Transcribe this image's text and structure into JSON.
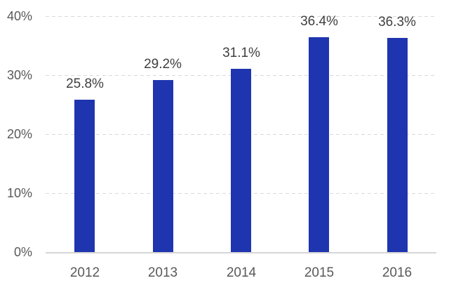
{
  "chart_data": {
    "type": "bar",
    "title": "",
    "xlabel": "",
    "ylabel": "",
    "categories": [
      "2012",
      "2013",
      "2014",
      "2015",
      "2016"
    ],
    "values": [
      25.8,
      29.2,
      31.1,
      36.4,
      36.3
    ],
    "value_labels": [
      "25.8%",
      "29.2%",
      "31.1%",
      "36.4%",
      "36.3%"
    ],
    "ylim": [
      0,
      40
    ],
    "yticks": [
      0,
      10,
      20,
      30,
      40
    ],
    "ytick_labels": [
      "0%",
      "10%",
      "20%",
      "30%",
      "40%"
    ],
    "grid": "horizontal-dashed",
    "legend": "none",
    "colors": {
      "bar": "#1E35AF",
      "gridline": "#D9D9D9",
      "axis_line": "#D6D6D6",
      "tick_label": "#595959",
      "data_label": "#3F3F3F",
      "background": "#FFFFFF"
    }
  }
}
